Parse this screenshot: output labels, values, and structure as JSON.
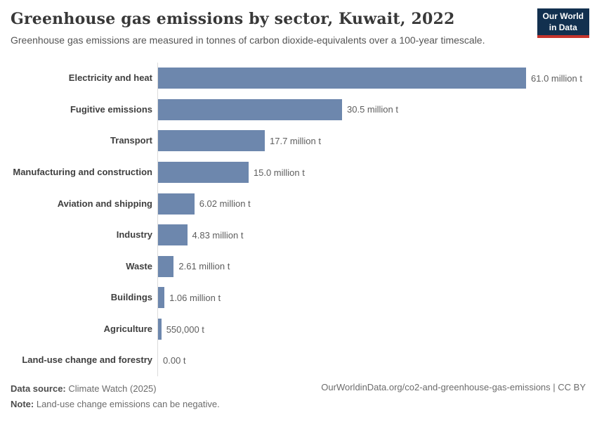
{
  "page": {
    "title": "Greenhouse gas emissions by sector, Kuwait, 2022",
    "subtitle": "Greenhouse gas emissions are measured in tonnes of carbon dioxide-equivalents over a 100-year timescale."
  },
  "logo": {
    "line1": "Our World",
    "line2": "in Data",
    "bg_color": "#12304f",
    "stripe_color": "#c5342c",
    "text_color": "#ffffff"
  },
  "chart_data": {
    "type": "bar",
    "orientation": "horizontal",
    "title": "Greenhouse gas emissions by sector, Kuwait, 2022",
    "subtitle": "Greenhouse gas emissions are measured in tonnes of carbon dioxide-equivalents over a 100-year timescale.",
    "unit": "tonnes of carbon dioxide-equivalents",
    "categories": [
      "Electricity and heat",
      "Fugitive emissions",
      "Transport",
      "Manufacturing and construction",
      "Aviation and shipping",
      "Industry",
      "Waste",
      "Buildings",
      "Agriculture",
      "Land-use change and forestry"
    ],
    "values_million_t": [
      61.0,
      30.5,
      17.7,
      15.0,
      6.02,
      4.83,
      2.61,
      1.06,
      0.55,
      0
    ],
    "value_labels": [
      "61.0 million t",
      "30.5 million t",
      "17.7 million t",
      "15.0 million t",
      "6.02 million t",
      "4.83 million t",
      "2.61 million t",
      "1.06 million t",
      "550,000 t",
      "0.00 t"
    ],
    "xlim_million_t": [
      0,
      61.0
    ],
    "grid": false,
    "legend": "none",
    "bar_color": "#6d87ad",
    "axis_line_color": "#dcdcdc"
  },
  "footer": {
    "data_source_label": "Data source:",
    "data_source_value": "Climate Watch (2025)",
    "note_label": "Note:",
    "note_value": "Land-use change emissions can be negative.",
    "attribution": "OurWorldinData.org/co2-and-greenhouse-gas-emissions | CC BY"
  }
}
